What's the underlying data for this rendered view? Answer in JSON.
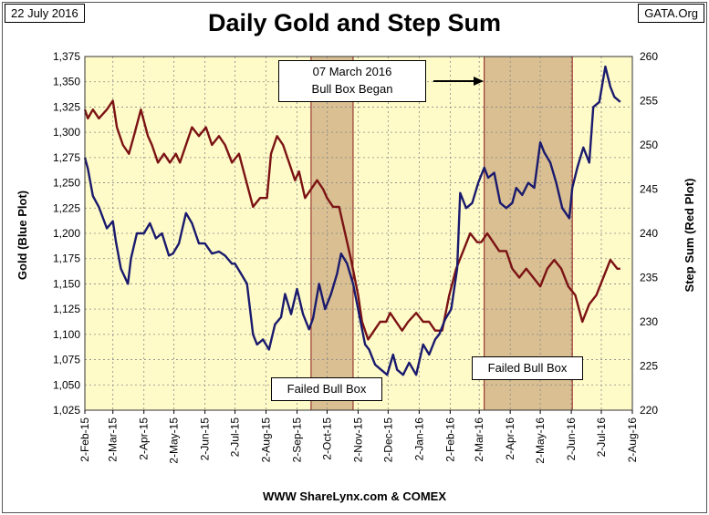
{
  "header": {
    "date": "22 July 2016",
    "source": "GATA.Org",
    "title": "Daily Gold and Step Sum"
  },
  "footer": {
    "credit": "WWW ShareLynx.com & COMEX"
  },
  "annotations": {
    "bull_box_began_line1": "07 March 2016",
    "bull_box_began_line2": "Bull Box Began",
    "failed_bull_box": "Failed Bull Box"
  },
  "colors": {
    "plot_bg": "#FFFBC8",
    "gold_line": "#1A1A6E",
    "step_sum_line": "#7B1214",
    "box_fill": "#D9BF91",
    "box_border": "#8B1A1A"
  },
  "chart_data": {
    "type": "line",
    "title": "Daily Gold and Step Sum",
    "xlabel": "",
    "ylabel": "Gold  (Blue Plot)",
    "y2label": "Step Sum   (Red Plot)",
    "ylim": [
      1025,
      1375
    ],
    "y2lim": [
      220,
      260
    ],
    "yticks": [
      "1,025",
      "1,050",
      "1,075",
      "1,100",
      "1,125",
      "1,150",
      "1,175",
      "1,200",
      "1,225",
      "1,250",
      "1,275",
      "1,300",
      "1,325",
      "1,350",
      "1,375"
    ],
    "y2ticks": [
      "220",
      "225",
      "230",
      "235",
      "240",
      "245",
      "250",
      "255",
      "260"
    ],
    "xticks": [
      "2-Feb-15",
      "2-Mar-15",
      "2-Apr-15",
      "2-May-15",
      "2-Jun-15",
      "2-Jul-15",
      "2-Aug-15",
      "2-Sep-15",
      "2-Oct-15",
      "2-Nov-15",
      "2-Dec-15",
      "2-Jan-16",
      "2-Feb-16",
      "2-Mar-16",
      "2-Apr-16",
      "2-May-16",
      "2-Jun-16",
      "2-Jul-16",
      "2-Aug-16"
    ],
    "grid": true,
    "shaded_periods": [
      {
        "label": "Failed Bull Box",
        "start": "2015-09-16",
        "end": "2015-10-28"
      },
      {
        "label": "Failed Bull Box",
        "start": "2016-03-07",
        "end": "2016-06-03"
      }
    ],
    "series": [
      {
        "name": "Gold",
        "axis": "left",
        "x": [
          "2015-02-02",
          "2015-02-05",
          "2015-02-10",
          "2015-02-16",
          "2015-02-24",
          "2015-03-02",
          "2015-03-05",
          "2015-03-10",
          "2015-03-17",
          "2015-03-20",
          "2015-03-26",
          "2015-04-02",
          "2015-04-08",
          "2015-04-14",
          "2015-04-20",
          "2015-04-27",
          "2015-05-01",
          "2015-05-07",
          "2015-05-14",
          "2015-05-20",
          "2015-05-27",
          "2015-06-02",
          "2015-06-09",
          "2015-06-16",
          "2015-06-22",
          "2015-06-29",
          "2015-07-02",
          "2015-07-08",
          "2015-07-14",
          "2015-07-20",
          "2015-07-24",
          "2015-07-30",
          "2015-08-05",
          "2015-08-11",
          "2015-08-17",
          "2015-08-21",
          "2015-08-27",
          "2015-09-02",
          "2015-09-08",
          "2015-09-14",
          "2015-09-18",
          "2015-09-24",
          "2015-09-30",
          "2015-10-06",
          "2015-10-12",
          "2015-10-16",
          "2015-10-22",
          "2015-10-28",
          "2015-11-03",
          "2015-11-09",
          "2015-11-13",
          "2015-11-19",
          "2015-11-25",
          "2015-12-01",
          "2015-12-07",
          "2015-12-11",
          "2015-12-17",
          "2015-12-23",
          "2015-12-30",
          "2016-01-06",
          "2016-01-12",
          "2016-01-18",
          "2016-01-22",
          "2016-01-28",
          "2016-02-03",
          "2016-02-09",
          "2016-02-12",
          "2016-02-18",
          "2016-02-24",
          "2016-03-01",
          "2016-03-07",
          "2016-03-11",
          "2016-03-17",
          "2016-03-23",
          "2016-03-29",
          "2016-04-04",
          "2016-04-08",
          "2016-04-14",
          "2016-04-20",
          "2016-04-26",
          "2016-05-02",
          "2016-05-06",
          "2016-05-12",
          "2016-05-18",
          "2016-05-24",
          "2016-05-31",
          "2016-06-03",
          "2016-06-08",
          "2016-06-14",
          "2016-06-20",
          "2016-06-24",
          "2016-06-30",
          "2016-07-06",
          "2016-07-11",
          "2016-07-15",
          "2016-07-21"
        ],
        "y": [
          1275,
          1264,
          1237,
          1226,
          1205,
          1212,
          1192,
          1165,
          1150,
          1175,
          1200,
          1200,
          1210,
          1195,
          1200,
          1178,
          1180,
          1190,
          1220,
          1210,
          1190,
          1190,
          1180,
          1182,
          1178,
          1170,
          1170,
          1160,
          1150,
          1100,
          1090,
          1095,
          1085,
          1110,
          1117,
          1140,
          1120,
          1145,
          1120,
          1105,
          1116,
          1150,
          1125,
          1140,
          1160,
          1180,
          1170,
          1150,
          1120,
          1090,
          1085,
          1070,
          1065,
          1060,
          1080,
          1065,
          1060,
          1072,
          1060,
          1090,
          1080,
          1095,
          1100,
          1115,
          1125,
          1165,
          1240,
          1225,
          1230,
          1250,
          1265,
          1255,
          1260,
          1230,
          1225,
          1230,
          1245,
          1238,
          1250,
          1245,
          1290,
          1280,
          1270,
          1250,
          1225,
          1215,
          1245,
          1265,
          1285,
          1270,
          1325,
          1330,
          1365,
          1345,
          1335,
          1330
        ]
      },
      {
        "name": "Step Sum",
        "axis": "right",
        "x": [
          "2015-02-02",
          "2015-02-05",
          "2015-02-10",
          "2015-02-16",
          "2015-02-24",
          "2015-03-02",
          "2015-03-06",
          "2015-03-12",
          "2015-03-18",
          "2015-03-23",
          "2015-03-30",
          "2015-04-06",
          "2015-04-10",
          "2015-04-16",
          "2015-04-22",
          "2015-04-28",
          "2015-05-04",
          "2015-05-08",
          "2015-05-14",
          "2015-05-20",
          "2015-05-27",
          "2015-06-03",
          "2015-06-09",
          "2015-06-16",
          "2015-06-22",
          "2015-06-29",
          "2015-07-06",
          "2015-07-13",
          "2015-07-20",
          "2015-07-27",
          "2015-08-03",
          "2015-08-07",
          "2015-08-13",
          "2015-08-19",
          "2015-08-25",
          "2015-08-31",
          "2015-09-04",
          "2015-09-10",
          "2015-09-16",
          "2015-09-22",
          "2015-09-28",
          "2015-10-02",
          "2015-10-08",
          "2015-10-14",
          "2015-10-20",
          "2015-10-26",
          "2015-11-02",
          "2015-11-06",
          "2015-11-12",
          "2015-11-18",
          "2015-11-24",
          "2015-11-30",
          "2015-12-04",
          "2015-12-10",
          "2015-12-16",
          "2015-12-22",
          "2015-12-30",
          "2016-01-06",
          "2016-01-12",
          "2016-01-18",
          "2016-01-25",
          "2016-02-01",
          "2016-02-08",
          "2016-02-15",
          "2016-02-22",
          "2016-02-29",
          "2016-03-04",
          "2016-03-10",
          "2016-03-16",
          "2016-03-22",
          "2016-03-29",
          "2016-04-04",
          "2016-04-11",
          "2016-04-18",
          "2016-04-25",
          "2016-05-02",
          "2016-05-09",
          "2016-05-16",
          "2016-05-23",
          "2016-05-30",
          "2016-06-06",
          "2016-06-13",
          "2016-06-20",
          "2016-06-27",
          "2016-07-04",
          "2016-07-11",
          "2016-07-18",
          "2016-07-21"
        ],
        "y": [
          254,
          253,
          254,
          253,
          254,
          255,
          252,
          250,
          249,
          251,
          254,
          251,
          250,
          248,
          249,
          248,
          249,
          248,
          250,
          252,
          251,
          252,
          250,
          251,
          250,
          248,
          249,
          246,
          243,
          244,
          244,
          249,
          251,
          250,
          248,
          246,
          247,
          244,
          245,
          246,
          245,
          244,
          243,
          243,
          240,
          237,
          233,
          230,
          228,
          229,
          230,
          230,
          231,
          230,
          229,
          230,
          231,
          230,
          230,
          229,
          229,
          233,
          236,
          238,
          240,
          239,
          239,
          240,
          239,
          238,
          238,
          236,
          235,
          236,
          235,
          234,
          236,
          237,
          236,
          234,
          233,
          230,
          232,
          233,
          235,
          237,
          236,
          236
        ]
      }
    ]
  }
}
